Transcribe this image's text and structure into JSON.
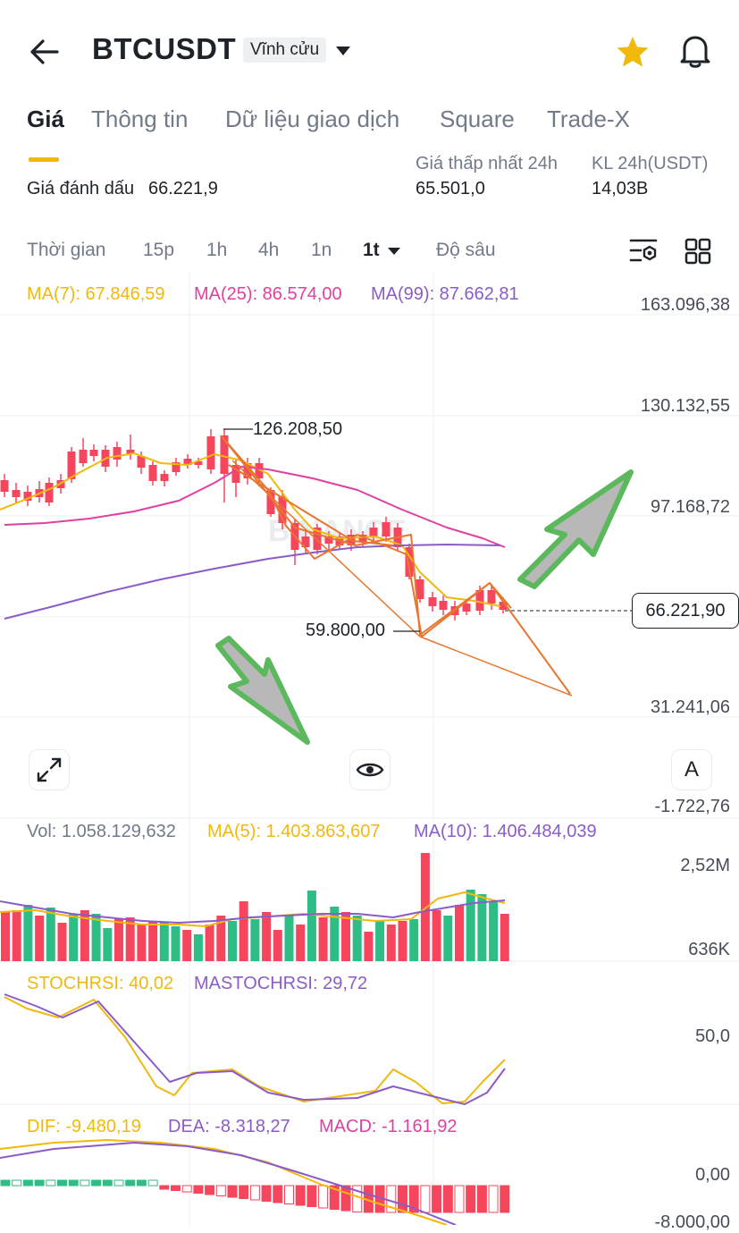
{
  "header": {
    "symbol": "BTCUSDT",
    "contract_type": "Vĩnh cửu",
    "icons": {
      "back": "arrow-left-icon",
      "dropdown": "caret-down-icon",
      "favorite": "star-icon",
      "alert": "bell-icon"
    },
    "star_color": "#f0b90b"
  },
  "tabs": [
    {
      "label": "Giá",
      "active": true
    },
    {
      "label": "Thông tin",
      "active": false
    },
    {
      "label": "Dữ liệu giao dịch",
      "active": false
    },
    {
      "label": "Square",
      "active": false
    },
    {
      "label": "Trade-X",
      "active": false
    }
  ],
  "stats": {
    "mark_price_label": "Giá đánh dấu",
    "mark_price_value": "66.221,9",
    "low_24h_label": "Giá thấp nhất 24h",
    "low_24h_value": "65.501,0",
    "vol_24h_label": "KL 24h(USDT)",
    "vol_24h_value": "14,03B"
  },
  "timeframes": {
    "time_label": "Thời gian",
    "items": [
      "15p",
      "1h",
      "4h",
      "1n",
      "1t"
    ],
    "active": "1t",
    "depth_label": "Độ sâu"
  },
  "main_chart": {
    "ma7": "MA(7): 67.846,59",
    "ma25": "MA(25): 86.574,00",
    "ma99": "MA(99): 87.662,81",
    "y_labels": [
      "163.096,38",
      "130.132,55",
      "97.168,72",
      "31.241,06",
      "-1.722,76"
    ],
    "current_price": "66.221,90",
    "high_marker": "126.208,50",
    "low_marker": "59.800,00",
    "watermark": "BINANCE"
  },
  "volume": {
    "vol": "Vol: 1.058.129,632",
    "ma5": "MA(5): 1.403.863,607",
    "ma10": "MA(10): 1.406.484,039",
    "y_labels": [
      "2,52M",
      "636K"
    ]
  },
  "stochrsi": {
    "value": "STOCHRSI: 40,02",
    "ma": "MASTOCHRSI: 29,72",
    "y_label": "50,0"
  },
  "macd": {
    "dif": "DIF: -9.480,19",
    "dea": "DEA: -8.318,27",
    "macd": "MACD: -1.161,92",
    "y_labels": [
      "0,00",
      "-8.000,00"
    ]
  },
  "controls": {
    "fullscreen_icon": "expand-icon",
    "eye_icon": "eye-icon",
    "auto_label": "A"
  },
  "colors": {
    "up": "#2ebd85",
    "down": "#f6465d",
    "ma7": "#f0b90b",
    "ma25": "#e040a0",
    "ma99": "#8b5cc8",
    "pattern": "#e8762e",
    "arrow": "#5cb85c"
  }
}
